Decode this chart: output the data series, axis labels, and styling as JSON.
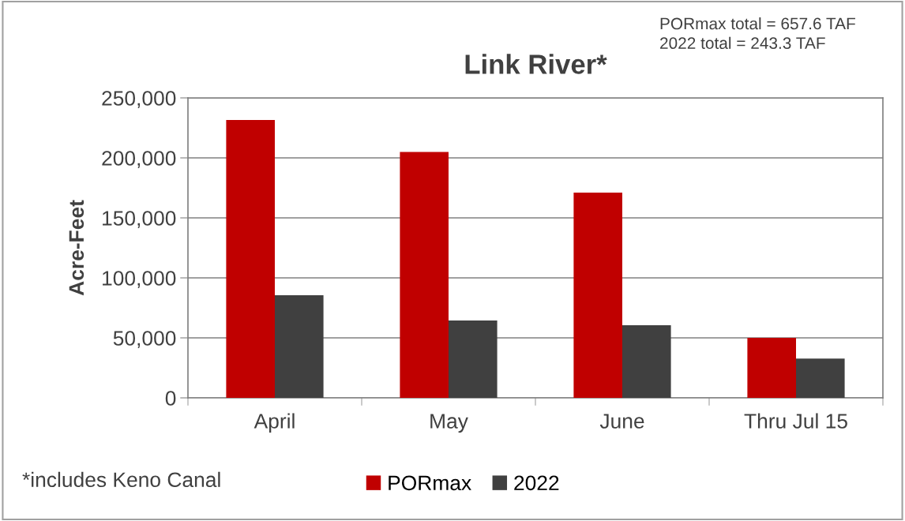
{
  "chart_data": {
    "type": "bar",
    "title": "Link River*",
    "ylabel": "Acre-Feet",
    "categories": [
      "April",
      "May",
      "June",
      "Thru Jul 15"
    ],
    "series": [
      {
        "name": "PORmax",
        "color": "#c00000",
        "values": [
          231500,
          205000,
          171000,
          50000
        ]
      },
      {
        "name": "2022",
        "color": "#404040",
        "values": [
          85500,
          64500,
          60500,
          32800
        ]
      }
    ],
    "ylim": [
      0,
      250000
    ],
    "yticks": [
      {
        "value": 0,
        "label": "0"
      },
      {
        "value": 50000,
        "label": "50,000"
      },
      {
        "value": 100000,
        "label": "100,000"
      },
      {
        "value": 150000,
        "label": "150,000"
      },
      {
        "value": 200000,
        "label": "200,000"
      },
      {
        "value": 250000,
        "label": "250,000"
      }
    ],
    "grid": "y",
    "legend": "bottom",
    "annotations": [
      "PORmax total = 657.6 TAF\n2022 total = 243.3 TAF",
      "*includes Keno Canal"
    ]
  }
}
